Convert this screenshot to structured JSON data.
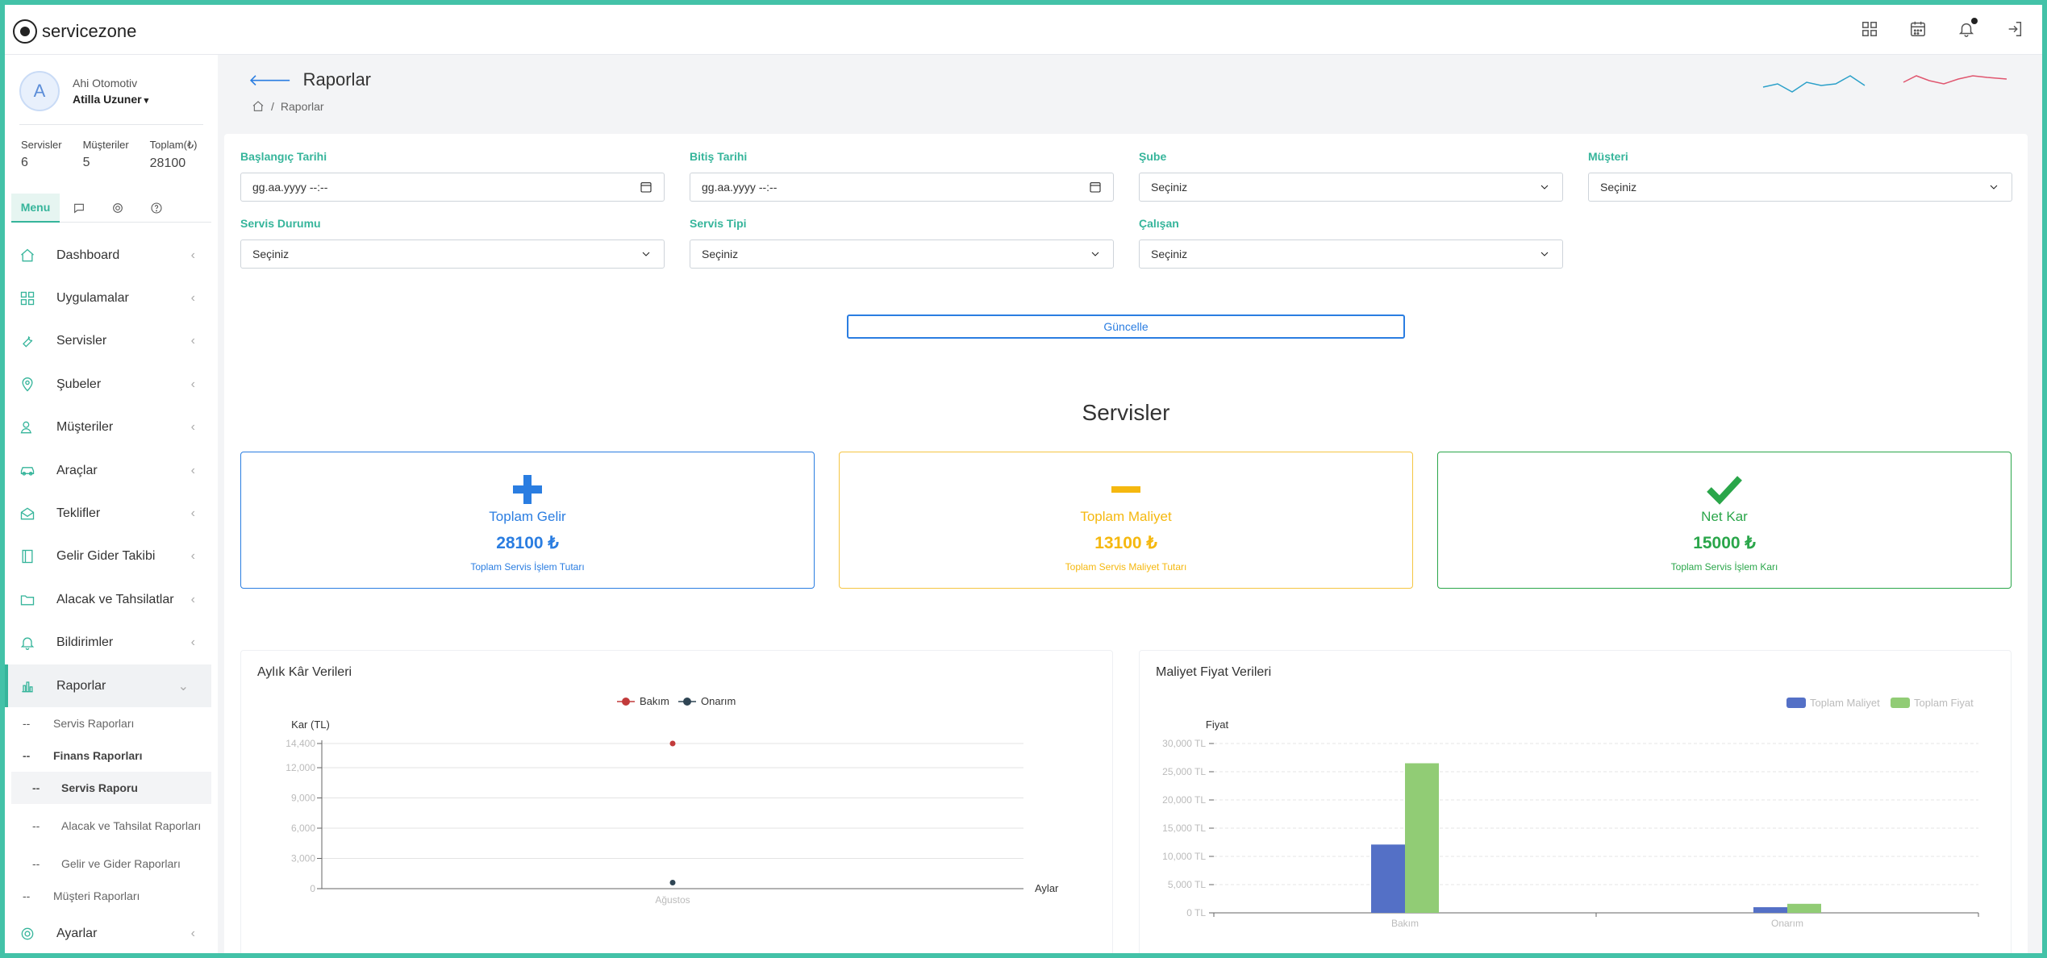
{
  "app": {
    "name": "servicezone"
  },
  "topbar": {
    "icons": [
      "apps-grid-icon",
      "calendar-icon",
      "bell-icon",
      "logout-icon"
    ]
  },
  "user": {
    "initial": "A",
    "company": "Ahi Otomotiv",
    "name": "Atilla Uzuner"
  },
  "stats": [
    {
      "label": "Servisler",
      "value": "6"
    },
    {
      "label": "Müşteriler",
      "value": "5"
    },
    {
      "label": "Toplam(₺)",
      "value": "28100"
    }
  ],
  "sidebar_tabs": {
    "menu": "Menu"
  },
  "menu": {
    "dashboard": "Dashboard",
    "uygulamalar": "Uygulamalar",
    "servisler": "Servisler",
    "subeler": "Şubeler",
    "musteriler": "Müşteriler",
    "araclar": "Araçlar",
    "teklifler": "Teklifler",
    "gelir_gider": "Gelir Gider Takibi",
    "alacak": "Alacak ve Tahsilatlar",
    "bildirimler": "Bildirimler",
    "raporlar": "Raporlar",
    "servis_raporlari": "Servis Raporları",
    "finans_raporlari": "Finans Raporları",
    "servis_raporu": "Servis Raporu",
    "alacak_tahsilat_raporlari": "Alacak ve Tahsilat Raporları",
    "gelir_gider_raporlari": "Gelir ve Gider Raporları",
    "musteri_raporlari": "Müşteri Raporları",
    "ayarlar": "Ayarlar"
  },
  "page": {
    "title": "Raporlar",
    "breadcrumb": "Raporlar"
  },
  "filters": {
    "baslangic": {
      "label": "Başlangıç Tarihi",
      "value": "gg.aa.yyyy --:--"
    },
    "bitis": {
      "label": "Bitiş Tarihi",
      "value": "gg.aa.yyyy --:--"
    },
    "sube": {
      "label": "Şube",
      "value": "Seçiniz"
    },
    "musteri": {
      "label": "Müşteri",
      "value": "Seçiniz"
    },
    "servis_durumu": {
      "label": "Servis Durumu",
      "value": "Seçiniz"
    },
    "servis_tipi": {
      "label": "Servis Tipi",
      "value": "Seçiniz"
    },
    "calisan": {
      "label": "Çalışan",
      "value": "Seçiniz"
    }
  },
  "update_button": "Güncelle",
  "section_title": "Servisler",
  "summary": {
    "gelir": {
      "title": "Toplam Gelir",
      "value": "28100 ₺",
      "sub": "Toplam Servis İşlem Tutarı",
      "color": "#2a7de1"
    },
    "maliyet": {
      "title": "Toplam Maliyet",
      "value": "13100 ₺",
      "sub": "Toplam Servis Maliyet Tutarı",
      "color": "#f5b80f"
    },
    "kar": {
      "title": "Net Kar",
      "value": "15000 ₺",
      "sub": "Toplam Servis İşlem Karı",
      "color": "#2aa64a"
    }
  },
  "chart_data": [
    {
      "type": "scatter",
      "title": "Aylık Kâr Verileri",
      "xlabel": "Aylar",
      "ylabel": "Kar (TL)",
      "categories": [
        "Ağustos"
      ],
      "yticks": [
        "0",
        "3,000",
        "6,000",
        "9,000",
        "12,000",
        "14,400"
      ],
      "ylim": [
        0,
        14400
      ],
      "legend": "top-center",
      "series": [
        {
          "name": "Bakım",
          "color": "#c23b3b",
          "values": [
            14400
          ]
        },
        {
          "name": "Onarım",
          "color": "#2f4554",
          "values": [
            600
          ]
        }
      ]
    },
    {
      "type": "bar",
      "title": "Maliyet Fiyat Verileri",
      "xlabel": "",
      "ylabel": "Fiyat",
      "categories": [
        "Bakım",
        "Onarım"
      ],
      "yticks": [
        "0 TL",
        "5,000 TL",
        "10,000 TL",
        "15,000 TL",
        "20,000 TL",
        "25,000 TL",
        "30,000 TL"
      ],
      "ylim": [
        0,
        30000
      ],
      "legend": "top-right",
      "series": [
        {
          "name": "Toplam Maliyet",
          "color": "#5470c6",
          "values": [
            12100,
            1000
          ]
        },
        {
          "name": "Toplam Fiyat",
          "color": "#91cc75",
          "values": [
            26500,
            1600
          ]
        }
      ]
    }
  ]
}
